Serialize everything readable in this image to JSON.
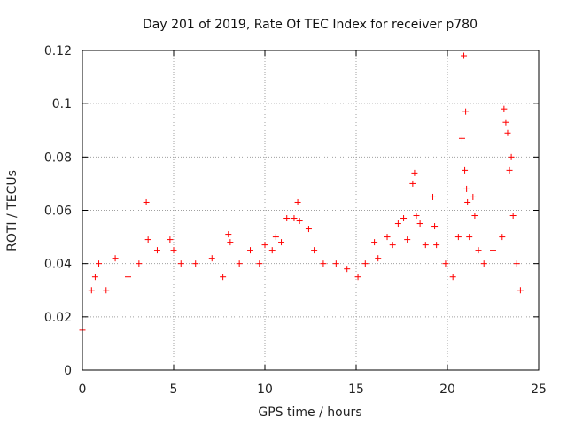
{
  "chart_data": {
    "type": "scatter",
    "title": "Day 201 of 2019, Rate Of TEC Index for receiver p780",
    "xlabel": "GPS time / hours",
    "ylabel": "ROTI / TECUs",
    "xlim": [
      0,
      25
    ],
    "ylim": [
      0,
      0.12
    ],
    "xticks": [
      0,
      5,
      10,
      15,
      20,
      25
    ],
    "yticks": [
      0,
      0.02,
      0.04,
      0.06,
      0.08,
      0.1,
      0.12
    ],
    "xtick_labels": [
      "0",
      "5",
      "10",
      "15",
      "20",
      "25"
    ],
    "ytick_labels": [
      "0",
      "0.02",
      "0.04",
      "0.06",
      "0.08",
      "0.1",
      "0.12"
    ],
    "grid": true,
    "marker": "+",
    "marker_color": "#ff0000",
    "series": [
      {
        "name": "p780",
        "x": [
          0.0,
          0.5,
          0.7,
          0.9,
          1.3,
          1.8,
          2.5,
          3.1,
          3.5,
          3.6,
          4.1,
          4.8,
          5.0,
          5.4,
          6.2,
          7.1,
          7.7,
          8.0,
          8.1,
          8.6,
          9.2,
          9.7,
          10.0,
          10.4,
          10.6,
          10.9,
          11.2,
          11.6,
          11.8,
          11.9,
          12.4,
          12.7,
          13.2,
          13.9,
          14.5,
          15.1,
          15.5,
          16.0,
          16.2,
          16.7,
          17.0,
          17.3,
          17.6,
          17.8,
          18.1,
          18.2,
          18.3,
          18.5,
          18.8,
          19.2,
          19.3,
          19.4,
          19.9,
          20.3,
          20.6,
          20.8,
          20.9,
          20.95,
          21.0,
          21.05,
          21.1,
          21.2,
          21.4,
          21.5,
          21.7,
          22.0,
          22.5,
          23.0,
          23.1,
          23.2,
          23.3,
          23.4,
          23.5,
          23.6,
          23.8,
          24.0
        ],
        "y": [
          0.015,
          0.03,
          0.035,
          0.04,
          0.03,
          0.042,
          0.035,
          0.04,
          0.063,
          0.049,
          0.045,
          0.049,
          0.045,
          0.04,
          0.04,
          0.042,
          0.035,
          0.051,
          0.048,
          0.04,
          0.045,
          0.04,
          0.047,
          0.045,
          0.05,
          0.048,
          0.057,
          0.057,
          0.063,
          0.056,
          0.053,
          0.045,
          0.04,
          0.04,
          0.038,
          0.035,
          0.04,
          0.048,
          0.042,
          0.05,
          0.047,
          0.055,
          0.057,
          0.049,
          0.07,
          0.074,
          0.058,
          0.055,
          0.047,
          0.065,
          0.054,
          0.047,
          0.04,
          0.035,
          0.05,
          0.087,
          0.118,
          0.075,
          0.097,
          0.068,
          0.063,
          0.05,
          0.065,
          0.058,
          0.045,
          0.04,
          0.045,
          0.05,
          0.098,
          0.093,
          0.089,
          0.075,
          0.08,
          0.058,
          0.04,
          0.03
        ]
      }
    ]
  }
}
